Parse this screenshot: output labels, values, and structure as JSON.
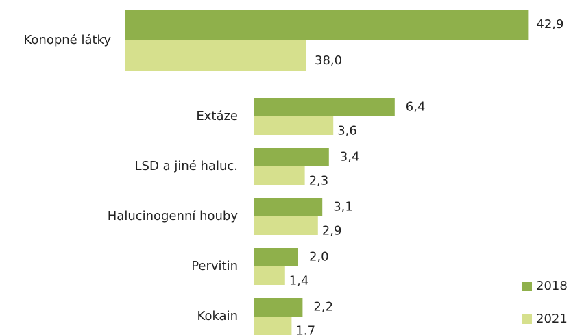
{
  "chart_data": [
    {
      "type": "bar",
      "orientation": "horizontal",
      "categories": [
        "Konopné látky"
      ],
      "series": [
        {
          "color": "#8fb04b",
          "values": [
            42.9
          ],
          "value_labels": [
            "42,9"
          ]
        },
        {
          "color": "#d6e08d",
          "values": [
            38.0
          ],
          "value_labels": [
            "38,0"
          ]
        }
      ],
      "xlim": [
        34,
        44
      ]
    },
    {
      "type": "bar",
      "orientation": "horizontal",
      "categories": [
        "Extáze",
        "LSD a jiné haluc.",
        "Halucinogenní houby",
        "Pervitin",
        "Kokain"
      ],
      "series": [
        {
          "name": "2018",
          "color": "#8fb04b",
          "values": [
            6.4,
            3.4,
            3.1,
            2.0,
            2.2
          ],
          "value_labels": [
            "6,4",
            "3,4",
            "3,1",
            "2,0",
            "2,2"
          ]
        },
        {
          "name": "2021",
          "color": "#d6e08d",
          "values": [
            3.6,
            2.3,
            2.9,
            1.4,
            1.7
          ],
          "value_labels": [
            "3,6",
            "2,3",
            "2,9",
            "1,4",
            "1.7"
          ]
        }
      ],
      "xlim": [
        0,
        10
      ],
      "legend": "bottom-right"
    }
  ]
}
